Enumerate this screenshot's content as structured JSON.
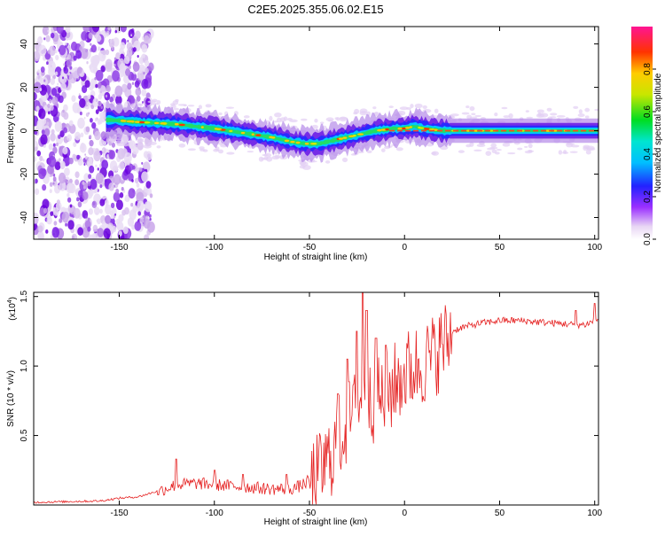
{
  "title": "C2E5.2025.355.06.02.E15",
  "colors": {
    "trace": "#e52121",
    "axis": "#000000"
  },
  "chart_data": [
    {
      "type": "heatmap",
      "xlabel": "Height of straight line (km)",
      "ylabel": "Frequency (Hz)",
      "xlim": [
        -195,
        102
      ],
      "ylim": [
        -50,
        48
      ],
      "x_ticks": [
        -150,
        -100,
        -50,
        0,
        50,
        100
      ],
      "y_ticks": [
        -40,
        -20,
        0,
        20,
        40
      ],
      "x_tick_labels": [
        "-150",
        "-100",
        "-50",
        "0",
        "50",
        "100"
      ],
      "y_tick_labels": [
        "-40",
        "-20",
        "0",
        "20",
        "40"
      ],
      "grid": false,
      "ridge": {
        "x": [
          -188,
          -155,
          -140,
          -120,
          -100,
          -85,
          -70,
          -60,
          -52,
          -45,
          -35,
          -25,
          -15,
          -5,
          0,
          5,
          10,
          20,
          40,
          60,
          80,
          100
        ],
        "y": [
          3,
          5,
          4,
          3,
          1,
          -1,
          -3,
          -5,
          -6,
          -6,
          -4,
          -2,
          0,
          1,
          1,
          2,
          1,
          0,
          0,
          0,
          0,
          0
        ]
      },
      "colorbar": {
        "label": "Normalized spectral amplitude",
        "range": [
          0,
          1
        ],
        "ticks": [
          0.0,
          0.2,
          0.4,
          0.6,
          0.8
        ],
        "tick_labels": [
          "0.0",
          "0.2",
          "0.4",
          "0.6",
          "0.8"
        ]
      }
    },
    {
      "type": "line",
      "xlabel": "Height of straight line (km)",
      "ylabel": "SNR (10 * v/v)",
      "multiplier": "(x10",
      "multiplier_exp": "4",
      "xlim": [
        -195,
        102
      ],
      "ylim": [
        0,
        1.53
      ],
      "x_ticks": [
        -150,
        -100,
        -50,
        0,
        50,
        100
      ],
      "y_ticks": [
        0.5,
        1.0,
        1.5
      ],
      "x_tick_labels": [
        "-150",
        "-100",
        "-50",
        "0",
        "50",
        "100"
      ],
      "y_tick_labels": [
        "0.5",
        "1.0",
        "1.5"
      ],
      "grid": false,
      "envelope": {
        "x": [
          -195,
          -160,
          -150,
          -140,
          -130,
          -120,
          -110,
          -100,
          -90,
          -80,
          -70,
          -60,
          -55,
          -50,
          -45,
          -40,
          -35,
          -30,
          -25,
          -22,
          -20,
          -15,
          -10,
          -5,
          0,
          5,
          10,
          15,
          20,
          25,
          30,
          40,
          50,
          60,
          70,
          80,
          90,
          95,
          100,
          102
        ],
        "y": [
          0.02,
          0.03,
          0.05,
          0.06,
          0.1,
          0.15,
          0.16,
          0.15,
          0.14,
          0.13,
          0.12,
          0.12,
          0.14,
          0.18,
          0.25,
          0.35,
          0.5,
          0.62,
          0.72,
          0.8,
          0.75,
          0.78,
          0.8,
          0.9,
          0.98,
          1.02,
          1.05,
          1.1,
          1.18,
          1.25,
          1.28,
          1.31,
          1.33,
          1.33,
          1.32,
          1.31,
          1.3,
          1.3,
          1.33,
          1.34
        ]
      },
      "spikes": [
        {
          "x": -120,
          "y": 0.33
        },
        {
          "x": -100,
          "y": 0.25
        },
        {
          "x": -85,
          "y": 0.22
        },
        {
          "x": -62,
          "y": 0.22
        },
        {
          "x": -35,
          "y": 0.8
        },
        {
          "x": -30,
          "y": 1.05
        },
        {
          "x": -25,
          "y": 1.25
        },
        {
          "x": -22,
          "y": 1.53
        },
        {
          "x": -20,
          "y": 1.4
        },
        {
          "x": -15,
          "y": 1.2
        },
        {
          "x": -10,
          "y": 1.15
        },
        {
          "x": 90,
          "y": 1.4
        },
        {
          "x": 100,
          "y": 1.45
        }
      ]
    }
  ]
}
